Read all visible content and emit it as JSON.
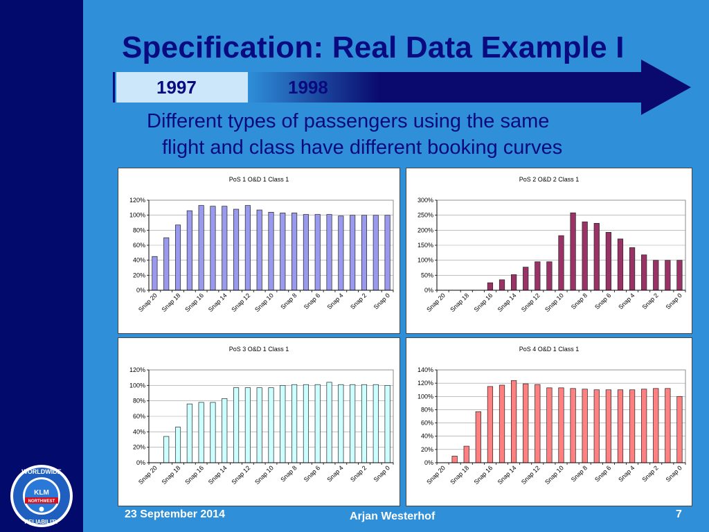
{
  "slide": {
    "title": "Specification: Real Data Example I",
    "timeline": {
      "year_a": "1997",
      "year_b": "1998"
    },
    "subtitle_line1": "Different types of passengers using the same",
    "subtitle_line2": "flight and class have different booking curves",
    "footer": {
      "date": "23 September 2014",
      "author": "Arjan Westerhof",
      "page": "7"
    },
    "logo": {
      "top_text": "WORLDWIDE",
      "bottom_text": "RELIABILITY",
      "brand": "KLM",
      "partner": "NORTHWEST"
    }
  },
  "colors": {
    "background": "#2f8fd8",
    "sidebar": "#020a6b",
    "title": "#0a0a80"
  },
  "chart_data": [
    {
      "type": "bar",
      "title": "PoS 1 O&D 1 Class 1",
      "categories": [
        "Snap 20",
        "Snap 19",
        "Snap 18",
        "Snap 17",
        "Snap 16",
        "Snap 15",
        "Snap 14",
        "Snap 13",
        "Snap 12",
        "Snap 11",
        "Snap 10",
        "Snap 9",
        "Snap 8",
        "Snap 7",
        "Snap 6",
        "Snap 5",
        "Snap 4",
        "Snap 3",
        "Snap 2",
        "Snap 1",
        "Snap 0"
      ],
      "tick_labels": [
        "Snap 20",
        "Snap 18",
        "Snap 16",
        "Snap 14",
        "Snap 12",
        "Snap 10",
        "Snap 8",
        "Snap 6",
        "Snap 4",
        "Snap 2",
        "Snap 0"
      ],
      "values": [
        45,
        70,
        87,
        106,
        113,
        112,
        112,
        108,
        113,
        107,
        104,
        103,
        103,
        101,
        101,
        101,
        99,
        100,
        100,
        100,
        100
      ],
      "ylim": [
        0,
        120
      ],
      "yticks": [
        0,
        20,
        40,
        60,
        80,
        100,
        120
      ],
      "ytick_labels": [
        "0%",
        "20%",
        "40%",
        "60%",
        "80%",
        "100%",
        "120%"
      ],
      "color": "#9999ee",
      "legend": false
    },
    {
      "type": "bar",
      "title": "PoS 2 O&D 2 Class 1",
      "categories": [
        "Snap 20",
        "Snap 19",
        "Snap 18",
        "Snap 17",
        "Snap 16",
        "Snap 15",
        "Snap 14",
        "Snap 13",
        "Snap 12",
        "Snap 11",
        "Snap 10",
        "Snap 9",
        "Snap 8",
        "Snap 7",
        "Snap 6",
        "Snap 5",
        "Snap 4",
        "Snap 3",
        "Snap 2",
        "Snap 1",
        "Snap 0"
      ],
      "tick_labels": [
        "Snap 20",
        "Snap 18",
        "Snap 16",
        "Snap 14",
        "Snap 12",
        "Snap 10",
        "Snap 8",
        "Snap 6",
        "Snap 4",
        "Snap 2",
        "Snap 0"
      ],
      "values": [
        0,
        0,
        0,
        0,
        25,
        35,
        52,
        77,
        95,
        95,
        182,
        258,
        228,
        223,
        193,
        171,
        142,
        118,
        100,
        100,
        100
      ],
      "ylim": [
        0,
        300
      ],
      "yticks": [
        0,
        50,
        100,
        150,
        200,
        250,
        300
      ],
      "ytick_labels": [
        "0%",
        "50%",
        "100%",
        "150%",
        "200%",
        "250%",
        "300%"
      ],
      "color": "#993366",
      "legend": false
    },
    {
      "type": "bar",
      "title": "PoS 3 O&D 1 Class 1",
      "categories": [
        "Snap 20",
        "Snap 19",
        "Snap 18",
        "Snap 17",
        "Snap 16",
        "Snap 15",
        "Snap 14",
        "Snap 13",
        "Snap 12",
        "Snap 11",
        "Snap 10",
        "Snap 9",
        "Snap 8",
        "Snap 7",
        "Snap 6",
        "Snap 5",
        "Snap 4",
        "Snap 3",
        "Snap 2",
        "Snap 1",
        "Snap 0"
      ],
      "tick_labels": [
        "Snap 20",
        "Snap 18",
        "Snap 16",
        "Snap 14",
        "Snap 12",
        "Snap 10",
        "Snap 8",
        "Snap 6",
        "Snap 4",
        "Snap 2",
        "Snap 0"
      ],
      "values": [
        0,
        34,
        46,
        76,
        78,
        78,
        83,
        97,
        97,
        97,
        97,
        100,
        101,
        101,
        101,
        104,
        101,
        101,
        101,
        101,
        100
      ],
      "ylim": [
        0,
        120
      ],
      "yticks": [
        0,
        20,
        40,
        60,
        80,
        100,
        120
      ],
      "ytick_labels": [
        "0%",
        "20%",
        "40%",
        "60%",
        "80%",
        "100%",
        "120%"
      ],
      "color": "#ccffff",
      "legend": false
    },
    {
      "type": "bar",
      "title": "PoS 4 O&D 1 Class 1",
      "categories": [
        "Snap 20",
        "Snap 19",
        "Snap 18",
        "Snap 17",
        "Snap 16",
        "Snap 15",
        "Snap 14",
        "Snap 13",
        "Snap 12",
        "Snap 11",
        "Snap 10",
        "Snap 9",
        "Snap 8",
        "Snap 7",
        "Snap 6",
        "Snap 5",
        "Snap 4",
        "Snap 3",
        "Snap 2",
        "Snap 1",
        "Snap 0"
      ],
      "tick_labels": [
        "Snap 20",
        "Snap 18",
        "Snap 16",
        "Snap 14",
        "Snap 12",
        "Snap 10",
        "Snap 8",
        "Snap 6",
        "Snap 4",
        "Snap 2",
        "Snap 0"
      ],
      "values": [
        0,
        10,
        25,
        77,
        115,
        117,
        124,
        119,
        118,
        113,
        113,
        112,
        111,
        110,
        110,
        110,
        110,
        111,
        112,
        112,
        100
      ],
      "ylim": [
        0,
        140
      ],
      "yticks": [
        0,
        20,
        40,
        60,
        80,
        100,
        120,
        140
      ],
      "ytick_labels": [
        "0%",
        "20%",
        "40%",
        "60%",
        "80%",
        "100%",
        "120%",
        "140%"
      ],
      "color": "#ff8080",
      "legend": false
    }
  ]
}
